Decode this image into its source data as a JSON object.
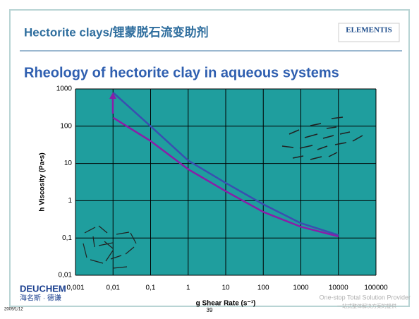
{
  "slide": {
    "heading": "Hectorite clays/锂蒙脱石流变助剂",
    "logo": "ELEMENTIS",
    "brand": "DEUCHEM",
    "brand_cn": "海名斯 · 德谦",
    "date": "2009/1/12",
    "page": "39",
    "slogan": "One-stop Total Solution Provider",
    "slogan_cn": "一站式整体解决方案的提供"
  },
  "chart_data": {
    "type": "line",
    "title": "Rheology of hectorite clay in aqueous systems",
    "x_label": "g Shear Rate (s⁻¹)",
    "y_label": "h Viscosity (Pa•s)",
    "x": [
      0.01,
      0.1,
      1,
      10,
      100,
      1000,
      10000
    ],
    "series": [
      {
        "color": "#3a4fb0",
        "values": [
          800,
          100,
          12,
          3,
          0.8,
          0.25,
          0.12
        ]
      },
      {
        "color": "#8a1ea8",
        "values": [
          170,
          40,
          7,
          1.8,
          0.5,
          0.2,
          0.11
        ]
      }
    ],
    "log_x": true,
    "log_y": true,
    "grid": true,
    "xlim": [
      0.001,
      100000
    ],
    "xticks": [
      {
        "value": 0.001,
        "label": "0,001"
      },
      {
        "value": 0.01,
        "label": "0,01"
      },
      {
        "value": 0.1,
        "label": "0,1"
      },
      1,
      10,
      100,
      1000,
      10000,
      100000
    ],
    "ylim": [
      0.01,
      1000
    ],
    "yticks": [
      {
        "value": 0.01,
        "label": "0,01"
      },
      {
        "value": 0.1,
        "label": "0,1"
      },
      1,
      10,
      100,
      1000
    ]
  }
}
